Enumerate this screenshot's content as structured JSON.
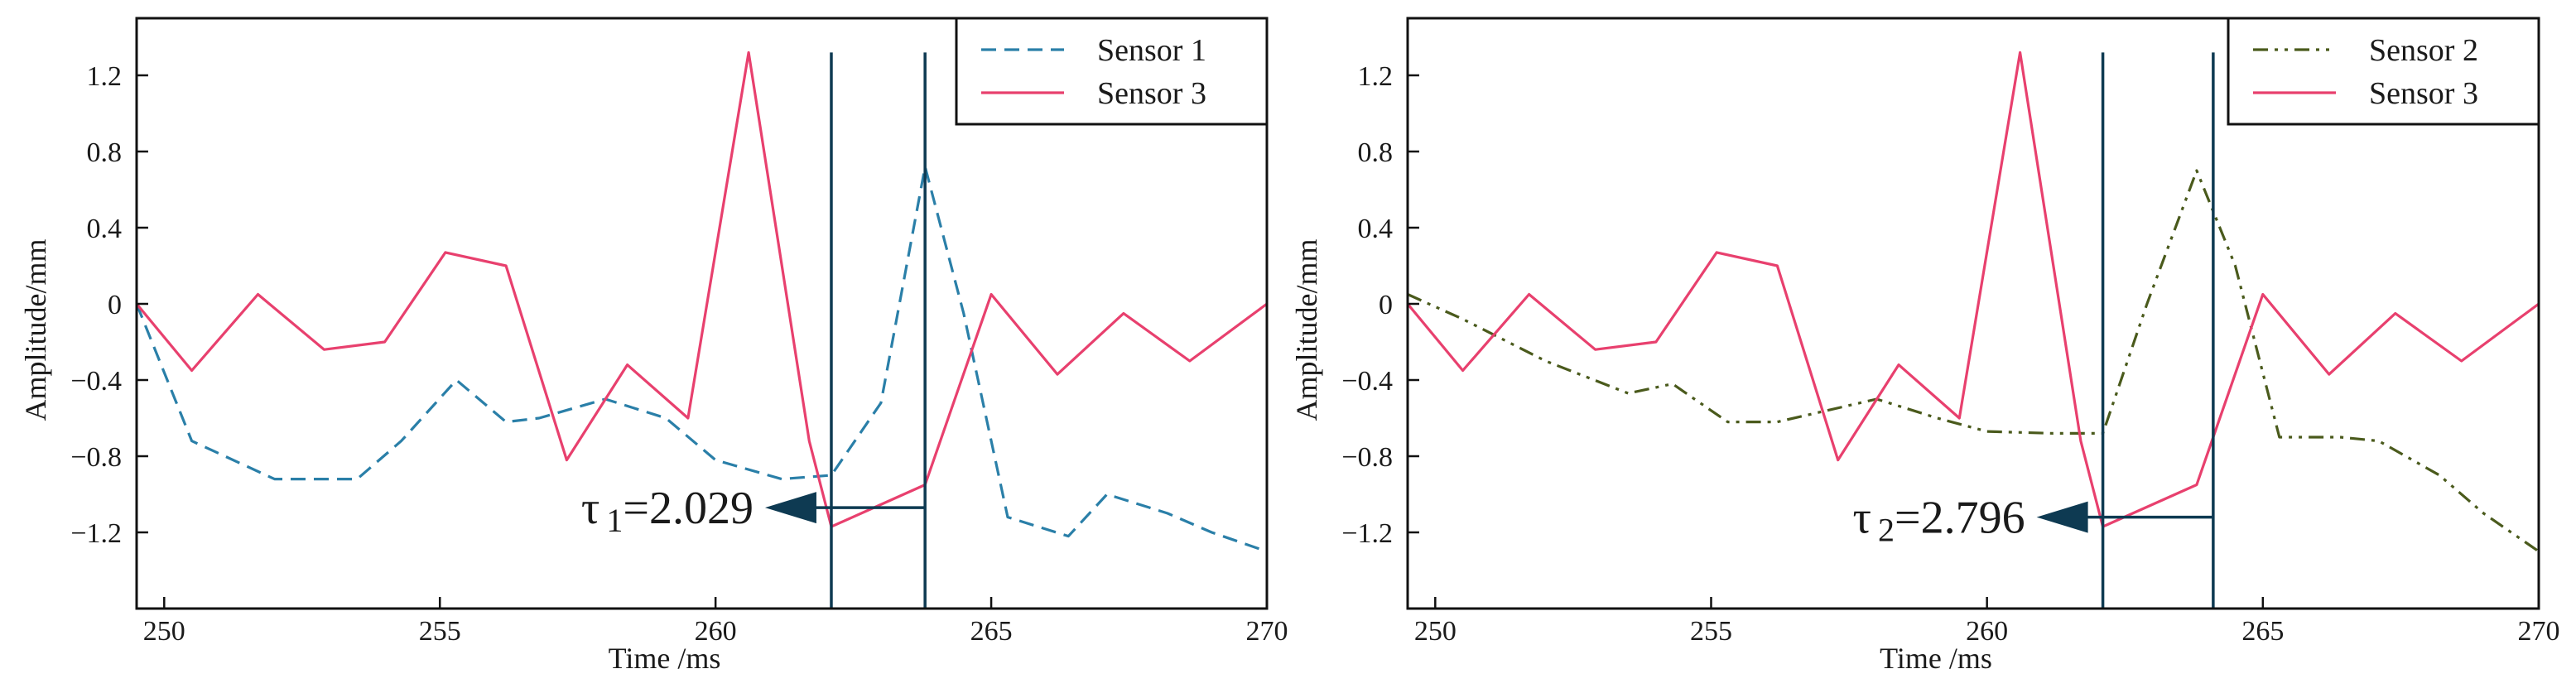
{
  "chart_data": [
    {
      "type": "line",
      "id": "left",
      "xlabel": "Time /ms",
      "ylabel": "Amplitude/mm",
      "xlim": [
        249.5,
        270
      ],
      "ylim": [
        -1.6,
        1.5
      ],
      "xticks": [
        250,
        255,
        260,
        265,
        270
      ],
      "yticks": [
        1.2,
        0.8,
        0.4,
        0,
        -0.4,
        -0.8,
        -1.2
      ],
      "ytick_labels": [
        "1.2",
        "0.8",
        "0.4",
        "0",
        "−0.4",
        "−0.8",
        "−1.2"
      ],
      "legend": {
        "position": "top-right"
      },
      "series": [
        {
          "name": "Sensor 1",
          "color": "#2a7fa8",
          "style": "dashed",
          "x": [
            249.5,
            250.5,
            252.0,
            253.5,
            254.3,
            255.3,
            256.2,
            256.8,
            258.0,
            259.1,
            260.0,
            261.2,
            262.1,
            263.0,
            263.8,
            264.5,
            265.3,
            266.4,
            267.1,
            268.2,
            269.0,
            270.0
          ],
          "y": [
            0.0,
            -0.72,
            -0.92,
            -0.92,
            -0.72,
            -0.4,
            -0.62,
            -0.6,
            -0.5,
            -0.6,
            -0.82,
            -0.92,
            -0.9,
            -0.52,
            0.72,
            -0.05,
            -1.12,
            -1.22,
            -1.0,
            -1.1,
            -1.2,
            -1.3
          ]
        },
        {
          "name": "Sensor 3",
          "color": "#e8406e",
          "style": "solid",
          "x": [
            249.5,
            250.5,
            251.7,
            252.9,
            254.0,
            255.1,
            256.2,
            257.3,
            258.4,
            259.5,
            260.6,
            261.7,
            262.1,
            263.8,
            265.0,
            266.2,
            267.4,
            268.6,
            270.0
          ],
          "y": [
            0.0,
            -0.35,
            0.05,
            -0.24,
            -0.2,
            0.27,
            0.2,
            -0.82,
            -0.32,
            -0.6,
            1.32,
            -0.72,
            -1.17,
            -0.95,
            0.05,
            -0.37,
            -0.05,
            -0.3,
            0.0
          ]
        }
      ],
      "markers": [
        {
          "x": 262.1
        },
        {
          "x": 263.8
        }
      ],
      "arrow_y": -1.07,
      "annotation": {
        "symbol": "τ",
        "sub": "1",
        "value": "=2.029"
      }
    },
    {
      "type": "line",
      "id": "right",
      "xlabel": "Time /ms",
      "ylabel": "Amplitude/mm",
      "xlim": [
        249.5,
        270
      ],
      "ylim": [
        -1.6,
        1.5
      ],
      "xticks": [
        250,
        255,
        260,
        265,
        270
      ],
      "yticks": [
        1.2,
        0.8,
        0.4,
        0,
        -0.4,
        -0.8,
        -1.2
      ],
      "ytick_labels": [
        "1.2",
        "0.8",
        "0.4",
        "0",
        "−0.4",
        "−0.8",
        "−1.2"
      ],
      "legend": {
        "position": "top-right"
      },
      "series": [
        {
          "name": "Sensor 2",
          "color": "#4a5a1c",
          "style": "dashdot",
          "x": [
            249.5,
            250.5,
            252.0,
            253.5,
            254.3,
            255.3,
            256.2,
            256.8,
            258.0,
            259.1,
            260.0,
            261.2,
            262.1,
            262.9,
            263.8,
            264.5,
            265.3,
            266.4,
            267.1,
            268.2,
            269.0,
            270.0
          ],
          "y": [
            0.05,
            -0.08,
            -0.3,
            -0.47,
            -0.42,
            -0.62,
            -0.62,
            -0.58,
            -0.5,
            -0.6,
            -0.67,
            -0.68,
            -0.68,
            0.0,
            0.7,
            0.2,
            -0.7,
            -0.7,
            -0.72,
            -0.9,
            -1.1,
            -1.3
          ]
        },
        {
          "name": "Sensor 3",
          "color": "#e8406e",
          "style": "solid",
          "x": [
            249.5,
            250.5,
            251.7,
            252.9,
            254.0,
            255.1,
            256.2,
            257.3,
            258.4,
            259.5,
            260.6,
            261.7,
            262.1,
            263.8,
            265.0,
            266.2,
            267.4,
            268.6,
            270.0
          ],
          "y": [
            0.0,
            -0.35,
            0.05,
            -0.24,
            -0.2,
            0.27,
            0.2,
            -0.82,
            -0.32,
            -0.6,
            1.32,
            -0.72,
            -1.17,
            -0.95,
            0.05,
            -0.37,
            -0.05,
            -0.3,
            0.0
          ]
        }
      ],
      "markers": [
        {
          "x": 262.1
        },
        {
          "x": 264.1
        }
      ],
      "arrow_y": -1.12,
      "annotation": {
        "symbol": "τ",
        "sub": "2",
        "value": "=2.796"
      }
    }
  ],
  "colors": {
    "frame": "#111111",
    "marker_line": "#0e3a52",
    "arrow": "#0e3a52"
  }
}
